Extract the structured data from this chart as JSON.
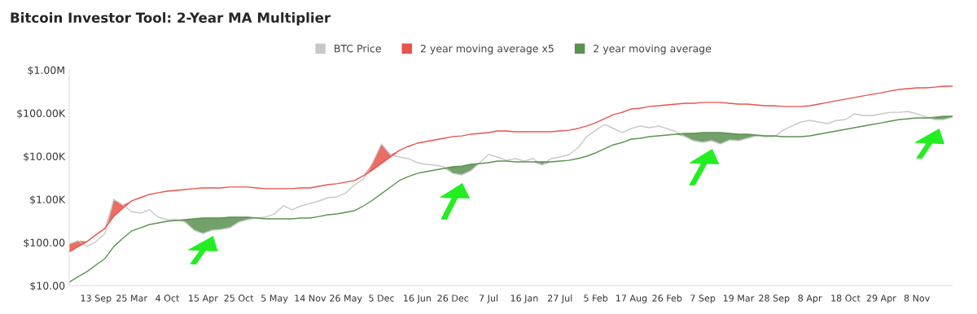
{
  "chart_data": {
    "type": "line",
    "title": "Bitcoin Investor Tool: 2-Year MA Multiplier",
    "categories": [
      null,
      null,
      null,
      "13 Sep",
      null,
      null,
      null,
      "25 Mar",
      null,
      null,
      null,
      "4 Oct",
      null,
      null,
      null,
      "15 Apr",
      null,
      null,
      null,
      "25 Oct",
      null,
      null,
      null,
      "5 May",
      null,
      null,
      null,
      "14 Nov",
      null,
      null,
      null,
      "26 May",
      null,
      null,
      null,
      "5 Dec",
      null,
      null,
      null,
      "16 Jun",
      null,
      null,
      null,
      "26 Dec",
      null,
      null,
      null,
      "7 Jul",
      null,
      null,
      null,
      "16 Jan",
      null,
      null,
      null,
      "27 Jul",
      null,
      null,
      null,
      "5 Feb",
      null,
      null,
      null,
      "17 Aug",
      null,
      null,
      null,
      "26 Feb",
      null,
      null,
      null,
      "7 Sep",
      null,
      null,
      null,
      "19 Mar",
      null,
      null,
      null,
      "28 Sep",
      null,
      null,
      null,
      "8 Apr",
      null,
      null,
      null,
      "18 Oct",
      null,
      null,
      null,
      "29 Apr",
      null,
      null,
      null,
      "8 Nov",
      null,
      null,
      null,
      null
    ],
    "series": [
      {
        "name": "BTC Price",
        "color": "#c8c8c8",
        "values": [
          92,
          109,
          80,
          104,
          161,
          1000,
          738,
          520,
          478,
          569,
          385,
          337,
          337,
          296,
          192,
          161,
          192,
          200,
          218,
          296,
          337,
          368,
          385,
          458,
          706,
          569,
          706,
          800,
          917,
          1090,
          1140,
          1410,
          2180,
          2960,
          7060,
          19200,
          10900,
          9580,
          8780,
          7060,
          6480,
          6200,
          5690,
          4000,
          3680,
          4580,
          7060,
          10900,
          9580,
          8000,
          8780,
          7700,
          8780,
          6200,
          8780,
          9580,
          10900,
          15400,
          28400,
          40000,
          54500,
          43800,
          35300,
          43800,
          50000,
          45800,
          50000,
          43800,
          36800,
          28400,
          22800,
          20900,
          22800,
          19200,
          23800,
          22800,
          26000,
          29600,
          28400,
          28400,
          40000,
          50000,
          62000,
          67600,
          62000,
          56900,
          67600,
          70600,
          95800,
          87800,
          87800,
          95800,
          104000,
          104000,
          109000,
          95800,
          82000,
          70600,
          70600,
          80000
        ]
      },
      {
        "name": "2 year moving average x5",
        "color": "#e8534a",
        "values": [
          60,
          80,
          105,
          150,
          210,
          400,
          620,
          920,
          1090,
          1300,
          1420,
          1545,
          1615,
          1685,
          1765,
          1840,
          1840,
          1840,
          1925,
          1925,
          1925,
          1840,
          1765,
          1765,
          1765,
          1765,
          1840,
          1840,
          2000,
          2190,
          2290,
          2500,
          2725,
          3530,
          4790,
          6750,
          9600,
          13600,
          16850,
          20000,
          21900,
          23900,
          26000,
          28450,
          29500,
          32400,
          33800,
          35300,
          38500,
          38500,
          36900,
          36900,
          36900,
          36900,
          36900,
          38500,
          40000,
          43900,
          50000,
          59500,
          74000,
          92000,
          104500,
          124500,
          130000,
          142000,
          148000,
          154500,
          161500,
          168500,
          168500,
          176500,
          176500,
          176500,
          168500,
          161500,
          161500,
          154500,
          148000,
          148000,
          142000,
          142000,
          142000,
          148000,
          161500,
          176500,
          192500,
          210000,
          229000,
          250000,
          272500,
          295000,
          324000,
          353000,
          369000,
          385000,
          385000,
          400000,
          420000,
          420000
        ],
        "lower": [
          60,
          80,
          105,
          null,
          210,
          400,
          620,
          920,
          null,
          null,
          null,
          null,
          null,
          null,
          null,
          null,
          null,
          null,
          null,
          null,
          null,
          null,
          null,
          null,
          null,
          null,
          null,
          null,
          null,
          null,
          null,
          null,
          null,
          3530,
          4790,
          6750,
          9600,
          13600,
          null,
          null,
          null,
          null,
          null,
          null,
          null,
          null,
          null,
          null,
          null,
          null,
          null,
          null,
          null,
          null,
          null,
          null,
          null,
          null,
          null,
          null,
          null,
          null,
          null,
          null,
          null,
          null,
          null,
          null,
          null,
          null,
          null,
          null,
          null,
          null,
          null,
          null,
          null,
          null,
          null,
          null,
          null,
          null,
          null,
          null,
          null,
          null,
          null,
          null,
          null,
          null,
          null,
          null,
          null,
          null,
          null,
          null,
          null,
          null,
          null,
          null
        ],
        "upper": [
          92,
          109,
          105,
          null,
          210,
          1000,
          738,
          920,
          null,
          null,
          null,
          null,
          null,
          null,
          null,
          null,
          null,
          null,
          null,
          null,
          null,
          null,
          null,
          null,
          null,
          null,
          null,
          null,
          null,
          null,
          null,
          null,
          null,
          3530,
          7060,
          19200,
          10900,
          13600,
          null,
          null,
          null,
          null,
          null,
          null,
          null,
          null,
          null,
          null,
          null,
          null,
          null,
          null,
          null,
          null,
          null,
          null,
          null,
          null,
          null,
          null,
          null,
          null,
          null,
          null,
          null,
          null,
          null,
          null,
          null,
          null,
          null,
          null,
          null,
          null,
          null,
          null,
          null,
          null,
          null,
          null,
          null,
          null,
          null,
          null,
          null,
          null,
          null,
          null,
          null,
          null,
          null,
          null,
          null,
          null,
          null,
          null,
          null,
          null,
          null,
          null
        ]
      },
      {
        "name": "2 year moving average",
        "color": "#5b9150",
        "values": [
          12,
          16,
          21,
          30,
          42,
          80,
          124,
          184,
          218,
          260,
          284,
          309,
          323,
          337,
          353,
          368,
          368,
          368,
          385,
          385,
          385,
          368,
          353,
          353,
          353,
          353,
          368,
          368,
          400,
          438,
          458,
          500,
          545,
          706,
          958,
          1350,
          1920,
          2720,
          3370,
          4000,
          4380,
          4780,
          5200,
          5690,
          5900,
          6480,
          6760,
          7060,
          7700,
          7700,
          7380,
          7380,
          7380,
          7380,
          7380,
          7700,
          8000,
          8780,
          10000,
          11900,
          14800,
          18400,
          20900,
          24900,
          26000,
          28400,
          29600,
          30900,
          32300,
          33700,
          33700,
          35300,
          35300,
          35300,
          33700,
          32300,
          32300,
          30900,
          29600,
          29600,
          28400,
          28400,
          28400,
          29600,
          32300,
          35300,
          38500,
          42000,
          45800,
          50000,
          54500,
          59000,
          64800,
          70600,
          73800,
          77000,
          77000,
          80000,
          84000,
          84000
        ],
        "lower": [
          null,
          null,
          null,
          null,
          null,
          null,
          null,
          null,
          null,
          null,
          null,
          null,
          323,
          296,
          192,
          161,
          192,
          200,
          218,
          296,
          337,
          368,
          null,
          null,
          null,
          null,
          null,
          null,
          null,
          null,
          null,
          null,
          null,
          null,
          null,
          null,
          null,
          null,
          null,
          null,
          null,
          null,
          5200,
          4000,
          3680,
          4580,
          6760,
          null,
          null,
          null,
          null,
          null,
          7380,
          6200,
          7380,
          null,
          null,
          null,
          null,
          null,
          null,
          null,
          null,
          null,
          null,
          null,
          null,
          null,
          32300,
          28400,
          22800,
          20900,
          22800,
          19200,
          23800,
          22800,
          26000,
          29600,
          28400,
          28400,
          28400,
          null,
          null,
          null,
          null,
          null,
          null,
          null,
          null,
          null,
          null,
          null,
          null,
          null,
          null,
          null,
          77000,
          70600,
          70600,
          80000
        ],
        "upper": [
          null,
          null,
          null,
          null,
          null,
          null,
          null,
          null,
          null,
          null,
          null,
          null,
          323,
          337,
          353,
          368,
          368,
          368,
          385,
          385,
          385,
          368,
          null,
          null,
          null,
          null,
          null,
          null,
          null,
          null,
          null,
          null,
          null,
          null,
          null,
          null,
          null,
          null,
          null,
          null,
          null,
          null,
          5200,
          5690,
          5900,
          6480,
          6760,
          null,
          null,
          null,
          null,
          null,
          7380,
          7380,
          7380,
          null,
          null,
          null,
          null,
          null,
          null,
          null,
          null,
          null,
          null,
          null,
          null,
          null,
          32300,
          33700,
          33700,
          35300,
          35300,
          35300,
          33700,
          32300,
          32300,
          30900,
          29600,
          29600,
          28400,
          null,
          null,
          null,
          null,
          null,
          null,
          null,
          null,
          null,
          null,
          null,
          null,
          null,
          null,
          null,
          77000,
          80000,
          84000,
          84000
        ]
      }
    ],
    "log": true,
    "ylim": [
      10,
      1000000
    ],
    "yticks": [
      {
        "value": 10,
        "label": "$10.00"
      },
      {
        "value": 100,
        "label": "$100.00"
      },
      {
        "value": 1000,
        "label": "$1.00K"
      },
      {
        "value": 10000,
        "label": "$10.00K"
      },
      {
        "value": 100000,
        "label": "$100.00K"
      },
      {
        "value": 1000000,
        "label": "$1.00M"
      }
    ],
    "grid": false,
    "legend": "top",
    "marker": "none",
    "line_style": "solid"
  }
}
